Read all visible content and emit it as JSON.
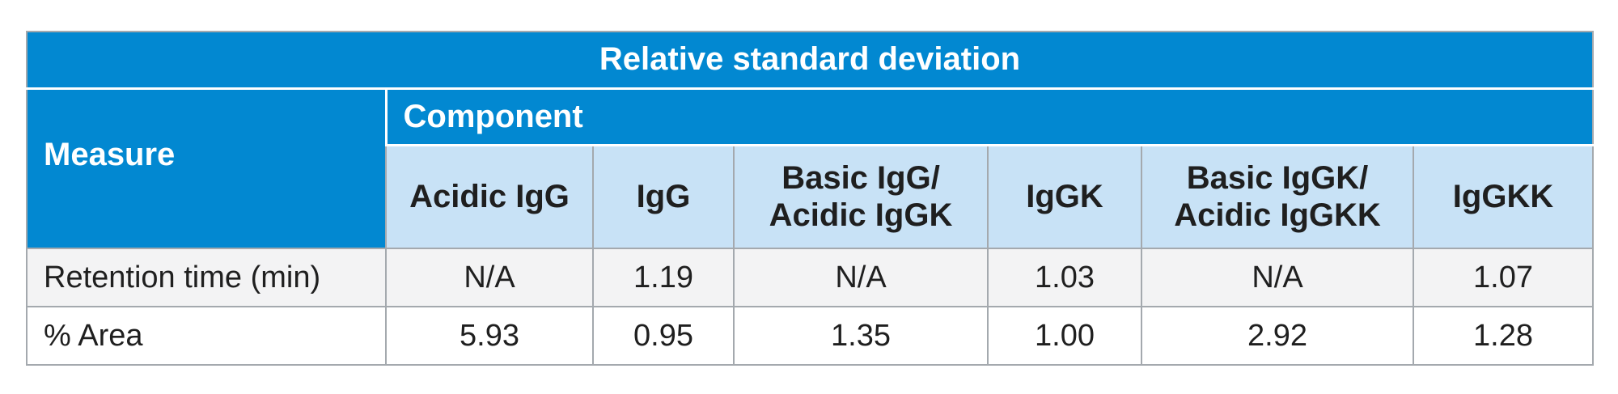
{
  "table": {
    "title": "Relative standard deviation",
    "measure_header": "Measure",
    "component_header": "Component",
    "columns": [
      [
        "Acidic IgG"
      ],
      [
        "IgG"
      ],
      [
        "Basic IgG/",
        "Acidic IgGK"
      ],
      [
        "IgGK"
      ],
      [
        "Basic IgGK/",
        "Acidic IgGKK"
      ],
      [
        "IgGKK"
      ]
    ],
    "rows": [
      {
        "label": "Retention time (min)",
        "values": [
          "N/A",
          "1.19",
          "N/A",
          "1.03",
          "N/A",
          "1.07"
        ]
      },
      {
        "label": "% Area",
        "values": [
          "5.93",
          "0.95",
          "1.35",
          "1.00",
          "2.92",
          "1.28"
        ]
      }
    ]
  },
  "colors": {
    "header_blue": "#0288d1",
    "subheader_light_blue": "#c8e2f6",
    "row_gray": "#f3f3f4",
    "border_gray": "#a4a9ae"
  }
}
